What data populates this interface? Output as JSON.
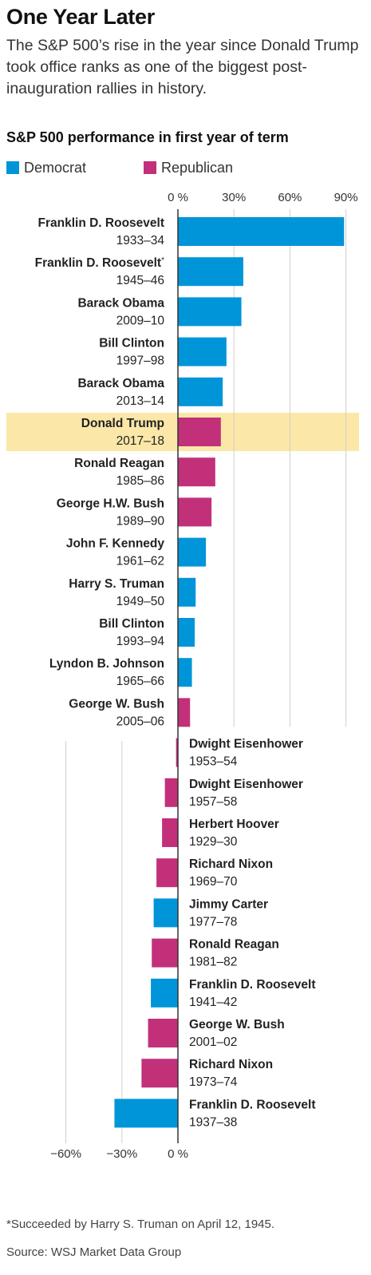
{
  "headline": "One Year Later",
  "dek": "The S&P 500’s rise in the year since Donald Trump took office ranks as one of the biggest post-inauguration rallies in history.",
  "footnote": "*Succeeded by Harry S. Truman on April 12, 1945.",
  "source": "Source: WSJ Market Data Group",
  "colors": {
    "Democrat": "#0095d9",
    "Republican": "#c2307a",
    "highlight": "#fbe7a8"
  },
  "chart_data": {
    "type": "bar",
    "orientation": "horizontal",
    "title": "S&P 500 performance in first year of term",
    "unit": "%",
    "legend": [
      "Democrat",
      "Republican"
    ],
    "legend_position": "top-left",
    "positive_axis": {
      "range": [
        0,
        90
      ],
      "ticks": [
        "0 %",
        "30%",
        "60%",
        "90%"
      ]
    },
    "negative_axis": {
      "range": [
        -60,
        0
      ],
      "ticks": [
        "−60%",
        "−30%",
        "0 %"
      ]
    },
    "grid": true,
    "highlight": "Donald Trump",
    "bars": [
      {
        "name": "Franklin D. Roosevelt",
        "years": "1933–34",
        "party": "Democrat",
        "value": 89
      },
      {
        "name": "Franklin D. Roosevelt",
        "marker": "*",
        "years": "1945–46",
        "party": "Democrat",
        "value": 35
      },
      {
        "name": "Barack Obama",
        "years": "2009–10",
        "party": "Democrat",
        "value": 34
      },
      {
        "name": "Bill Clinton",
        "years": "1997–98",
        "party": "Democrat",
        "value": 26
      },
      {
        "name": "Barack Obama",
        "years": "2013–14",
        "party": "Democrat",
        "value": 24
      },
      {
        "name": "Donald Trump",
        "years": "2017–18",
        "party": "Republican",
        "value": 23
      },
      {
        "name": "Ronald Reagan",
        "years": "1985–86",
        "party": "Republican",
        "value": 20
      },
      {
        "name": "George H.W. Bush",
        "years": "1989–90",
        "party": "Republican",
        "value": 18
      },
      {
        "name": "John F. Kennedy",
        "years": "1961–62",
        "party": "Democrat",
        "value": 15
      },
      {
        "name": "Harry S. Truman",
        "years": "1949–50",
        "party": "Democrat",
        "value": 9.5
      },
      {
        "name": "Bill Clinton",
        "years": "1993–94",
        "party": "Democrat",
        "value": 9
      },
      {
        "name": "Lyndon B. Johnson",
        "years": "1965–66",
        "party": "Democrat",
        "value": 7.5
      },
      {
        "name": "George W. Bush",
        "years": "2005–06",
        "party": "Republican",
        "value": 6.5
      },
      {
        "name": "Dwight Eisenhower",
        "years": "1953–54",
        "party": "Republican",
        "value": -1
      },
      {
        "name": "Dwight Eisenhower",
        "years": "1957–58",
        "party": "Republican",
        "value": -7
      },
      {
        "name": "Herbert Hoover",
        "years": "1929–30",
        "party": "Republican",
        "value": -8.5
      },
      {
        "name": "Richard Nixon",
        "years": "1969–70",
        "party": "Republican",
        "value": -11.5
      },
      {
        "name": "Jimmy Carter",
        "years": "1977–78",
        "party": "Democrat",
        "value": -13
      },
      {
        "name": "Ronald Reagan",
        "years": "1981–82",
        "party": "Republican",
        "value": -14
      },
      {
        "name": "Franklin D. Roosevelt",
        "years": "1941–42",
        "party": "Democrat",
        "value": -14.5
      },
      {
        "name": "George W. Bush",
        "years": "2001–02",
        "party": "Republican",
        "value": -16
      },
      {
        "name": "Richard Nixon",
        "years": "1973–74",
        "party": "Republican",
        "value": -19.5
      },
      {
        "name": "Franklin D. Roosevelt",
        "years": "1937–38",
        "party": "Democrat",
        "value": -34
      }
    ]
  }
}
